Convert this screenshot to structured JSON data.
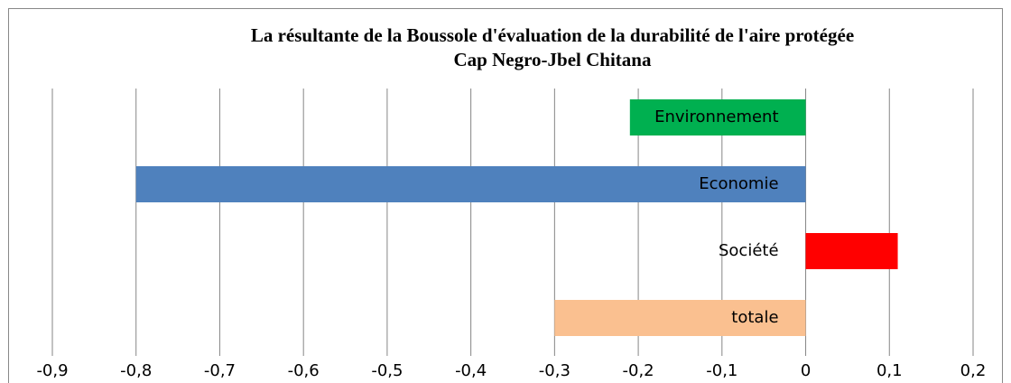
{
  "chart_data": {
    "type": "hbar",
    "title": [
      "La résultante de la Boussole d'évaluation de la durabilité de l'aire protégée",
      "Cap Negro-Jbel Chitana"
    ],
    "categories": [
      "Environnement",
      "Economie",
      "Société",
      "totale"
    ],
    "values": [
      -0.21,
      -0.8,
      0.11,
      -0.3
    ],
    "colors": [
      "#00b050",
      "#4f81bd",
      "#ff0000",
      "#fac090"
    ],
    "xlim": [
      -0.9,
      0.2
    ],
    "xticks": [
      {
        "value": -0.9,
        "label": "-0,9"
      },
      {
        "value": -0.8,
        "label": "-0,8"
      },
      {
        "value": -0.7,
        "label": "-0,7"
      },
      {
        "value": -0.6,
        "label": "-0,6"
      },
      {
        "value": -0.5,
        "label": "-0,5"
      },
      {
        "value": -0.4,
        "label": "-0,4"
      },
      {
        "value": -0.3,
        "label": "-0,3"
      },
      {
        "value": -0.2,
        "label": "-0,2"
      },
      {
        "value": -0.1,
        "label": "-0,1"
      },
      0,
      {
        "value": 0.1,
        "label": "0,1"
      },
      {
        "value": 0.2,
        "label": "0,2"
      }
    ],
    "grid": true
  }
}
